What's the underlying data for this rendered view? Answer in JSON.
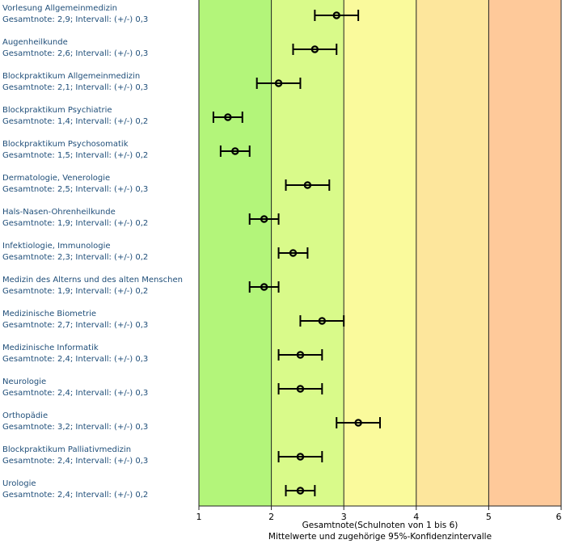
{
  "chart_data": {
    "type": "errorbar",
    "title": "",
    "xlabel": "Gesamtnote(Schulnoten von 1 bis 6)",
    "xlabel2": "Mittelwerte und zugehörige 95%-Konfidenzintervalle",
    "xlim": [
      1,
      6
    ],
    "xticks": [
      "1",
      "2",
      "3",
      "4",
      "5",
      "6"
    ],
    "grid": true,
    "band_colors": [
      "#b3f57a",
      "#d9fa8a",
      "#fafa9c",
      "#fde69c",
      "#fec99a"
    ],
    "items": [
      {
        "name": "Vorlesung Allgemeinmedizin",
        "stat": "Gesamtnote: 2,9;  Intervall: (+/-) 0,3",
        "mean": 2.9,
        "ci": 0.3
      },
      {
        "name": "Augenheilkunde",
        "stat": "Gesamtnote: 2,6;  Intervall: (+/-) 0,3",
        "mean": 2.6,
        "ci": 0.3
      },
      {
        "name": "Blockpraktikum Allgemeinmedizin",
        "stat": "Gesamtnote: 2,1;  Intervall: (+/-) 0,3",
        "mean": 2.1,
        "ci": 0.3
      },
      {
        "name": "Blockpraktikum Psychiatrie",
        "stat": "Gesamtnote: 1,4;  Intervall: (+/-) 0,2",
        "mean": 1.4,
        "ci": 0.2
      },
      {
        "name": "Blockpraktikum Psychosomatik",
        "stat": "Gesamtnote: 1,5;  Intervall: (+/-) 0,2",
        "mean": 1.5,
        "ci": 0.2
      },
      {
        "name": "Dermatologie, Venerologie",
        "stat": "Gesamtnote: 2,5;  Intervall: (+/-) 0,3",
        "mean": 2.5,
        "ci": 0.3
      },
      {
        "name": "Hals-Nasen-Ohrenheilkunde",
        "stat": "Gesamtnote: 1,9;  Intervall: (+/-) 0,2",
        "mean": 1.9,
        "ci": 0.2
      },
      {
        "name": "Infektiologie, Immunologie",
        "stat": "Gesamtnote: 2,3;  Intervall: (+/-) 0,2",
        "mean": 2.3,
        "ci": 0.2
      },
      {
        "name": "Medizin des Alterns und des alten Menschen",
        "stat": "Gesamtnote: 1,9;  Intervall: (+/-) 0,2",
        "mean": 1.9,
        "ci": 0.2
      },
      {
        "name": "Medizinische Biometrie",
        "stat": "Gesamtnote: 2,7;  Intervall: (+/-) 0,3",
        "mean": 2.7,
        "ci": 0.3
      },
      {
        "name": "Medizinische Informatik",
        "stat": "Gesamtnote: 2,4;  Intervall: (+/-) 0,3",
        "mean": 2.4,
        "ci": 0.3
      },
      {
        "name": "Neurologie",
        "stat": "Gesamtnote: 2,4;  Intervall: (+/-) 0,3",
        "mean": 2.4,
        "ci": 0.3
      },
      {
        "name": "Orthopädie",
        "stat": "Gesamtnote: 3,2;  Intervall: (+/-) 0,3",
        "mean": 3.2,
        "ci": 0.3
      },
      {
        "name": "Blockpraktikum Palliativmedizin",
        "stat": "Gesamtnote: 2,4;  Intervall: (+/-) 0,3",
        "mean": 2.4,
        "ci": 0.3
      },
      {
        "name": "Urologie",
        "stat": "Gesamtnote: 2,4;  Intervall: (+/-) 0,2",
        "mean": 2.4,
        "ci": 0.2
      }
    ]
  }
}
